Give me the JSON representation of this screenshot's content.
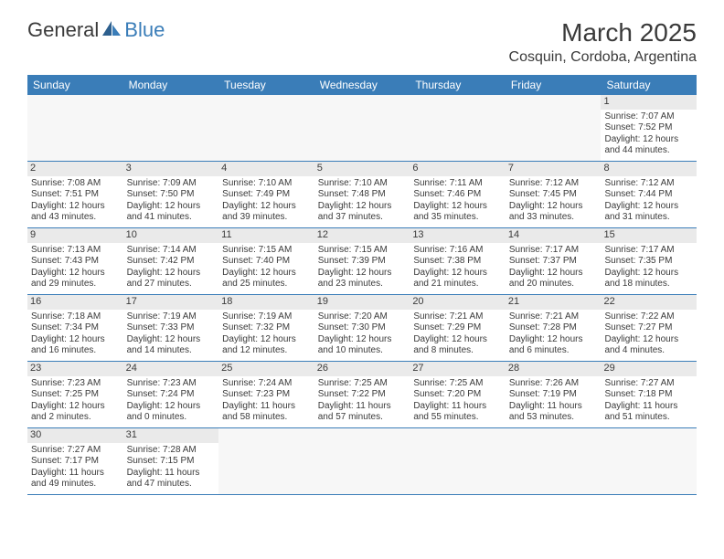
{
  "logo": {
    "text1": "General",
    "text2": "Blue"
  },
  "title": "March 2025",
  "location": "Cosquin, Cordoba, Argentina",
  "colors": {
    "header_bg": "#3a7db8",
    "header_text": "#ffffff",
    "daynum_bg": "#eaeaea",
    "empty_bg": "#f7f7f7",
    "text": "#3a3a3a",
    "border": "#3a7db8"
  },
  "days_of_week": [
    "Sunday",
    "Monday",
    "Tuesday",
    "Wednesday",
    "Thursday",
    "Friday",
    "Saturday"
  ],
  "weeks": [
    [
      {
        "empty": true
      },
      {
        "empty": true
      },
      {
        "empty": true
      },
      {
        "empty": true
      },
      {
        "empty": true
      },
      {
        "empty": true
      },
      {
        "day": 1,
        "sunrise": "Sunrise: 7:07 AM",
        "sunset": "Sunset: 7:52 PM",
        "daylight": "Daylight: 12 hours and 44 minutes."
      }
    ],
    [
      {
        "day": 2,
        "sunrise": "Sunrise: 7:08 AM",
        "sunset": "Sunset: 7:51 PM",
        "daylight": "Daylight: 12 hours and 43 minutes."
      },
      {
        "day": 3,
        "sunrise": "Sunrise: 7:09 AM",
        "sunset": "Sunset: 7:50 PM",
        "daylight": "Daylight: 12 hours and 41 minutes."
      },
      {
        "day": 4,
        "sunrise": "Sunrise: 7:10 AM",
        "sunset": "Sunset: 7:49 PM",
        "daylight": "Daylight: 12 hours and 39 minutes."
      },
      {
        "day": 5,
        "sunrise": "Sunrise: 7:10 AM",
        "sunset": "Sunset: 7:48 PM",
        "daylight": "Daylight: 12 hours and 37 minutes."
      },
      {
        "day": 6,
        "sunrise": "Sunrise: 7:11 AM",
        "sunset": "Sunset: 7:46 PM",
        "daylight": "Daylight: 12 hours and 35 minutes."
      },
      {
        "day": 7,
        "sunrise": "Sunrise: 7:12 AM",
        "sunset": "Sunset: 7:45 PM",
        "daylight": "Daylight: 12 hours and 33 minutes."
      },
      {
        "day": 8,
        "sunrise": "Sunrise: 7:12 AM",
        "sunset": "Sunset: 7:44 PM",
        "daylight": "Daylight: 12 hours and 31 minutes."
      }
    ],
    [
      {
        "day": 9,
        "sunrise": "Sunrise: 7:13 AM",
        "sunset": "Sunset: 7:43 PM",
        "daylight": "Daylight: 12 hours and 29 minutes."
      },
      {
        "day": 10,
        "sunrise": "Sunrise: 7:14 AM",
        "sunset": "Sunset: 7:42 PM",
        "daylight": "Daylight: 12 hours and 27 minutes."
      },
      {
        "day": 11,
        "sunrise": "Sunrise: 7:15 AM",
        "sunset": "Sunset: 7:40 PM",
        "daylight": "Daylight: 12 hours and 25 minutes."
      },
      {
        "day": 12,
        "sunrise": "Sunrise: 7:15 AM",
        "sunset": "Sunset: 7:39 PM",
        "daylight": "Daylight: 12 hours and 23 minutes."
      },
      {
        "day": 13,
        "sunrise": "Sunrise: 7:16 AM",
        "sunset": "Sunset: 7:38 PM",
        "daylight": "Daylight: 12 hours and 21 minutes."
      },
      {
        "day": 14,
        "sunrise": "Sunrise: 7:17 AM",
        "sunset": "Sunset: 7:37 PM",
        "daylight": "Daylight: 12 hours and 20 minutes."
      },
      {
        "day": 15,
        "sunrise": "Sunrise: 7:17 AM",
        "sunset": "Sunset: 7:35 PM",
        "daylight": "Daylight: 12 hours and 18 minutes."
      }
    ],
    [
      {
        "day": 16,
        "sunrise": "Sunrise: 7:18 AM",
        "sunset": "Sunset: 7:34 PM",
        "daylight": "Daylight: 12 hours and 16 minutes."
      },
      {
        "day": 17,
        "sunrise": "Sunrise: 7:19 AM",
        "sunset": "Sunset: 7:33 PM",
        "daylight": "Daylight: 12 hours and 14 minutes."
      },
      {
        "day": 18,
        "sunrise": "Sunrise: 7:19 AM",
        "sunset": "Sunset: 7:32 PM",
        "daylight": "Daylight: 12 hours and 12 minutes."
      },
      {
        "day": 19,
        "sunrise": "Sunrise: 7:20 AM",
        "sunset": "Sunset: 7:30 PM",
        "daylight": "Daylight: 12 hours and 10 minutes."
      },
      {
        "day": 20,
        "sunrise": "Sunrise: 7:21 AM",
        "sunset": "Sunset: 7:29 PM",
        "daylight": "Daylight: 12 hours and 8 minutes."
      },
      {
        "day": 21,
        "sunrise": "Sunrise: 7:21 AM",
        "sunset": "Sunset: 7:28 PM",
        "daylight": "Daylight: 12 hours and 6 minutes."
      },
      {
        "day": 22,
        "sunrise": "Sunrise: 7:22 AM",
        "sunset": "Sunset: 7:27 PM",
        "daylight": "Daylight: 12 hours and 4 minutes."
      }
    ],
    [
      {
        "day": 23,
        "sunrise": "Sunrise: 7:23 AM",
        "sunset": "Sunset: 7:25 PM",
        "daylight": "Daylight: 12 hours and 2 minutes."
      },
      {
        "day": 24,
        "sunrise": "Sunrise: 7:23 AM",
        "sunset": "Sunset: 7:24 PM",
        "daylight": "Daylight: 12 hours and 0 minutes."
      },
      {
        "day": 25,
        "sunrise": "Sunrise: 7:24 AM",
        "sunset": "Sunset: 7:23 PM",
        "daylight": "Daylight: 11 hours and 58 minutes."
      },
      {
        "day": 26,
        "sunrise": "Sunrise: 7:25 AM",
        "sunset": "Sunset: 7:22 PM",
        "daylight": "Daylight: 11 hours and 57 minutes."
      },
      {
        "day": 27,
        "sunrise": "Sunrise: 7:25 AM",
        "sunset": "Sunset: 7:20 PM",
        "daylight": "Daylight: 11 hours and 55 minutes."
      },
      {
        "day": 28,
        "sunrise": "Sunrise: 7:26 AM",
        "sunset": "Sunset: 7:19 PM",
        "daylight": "Daylight: 11 hours and 53 minutes."
      },
      {
        "day": 29,
        "sunrise": "Sunrise: 7:27 AM",
        "sunset": "Sunset: 7:18 PM",
        "daylight": "Daylight: 11 hours and 51 minutes."
      }
    ],
    [
      {
        "day": 30,
        "sunrise": "Sunrise: 7:27 AM",
        "sunset": "Sunset: 7:17 PM",
        "daylight": "Daylight: 11 hours and 49 minutes."
      },
      {
        "day": 31,
        "sunrise": "Sunrise: 7:28 AM",
        "sunset": "Sunset: 7:15 PM",
        "daylight": "Daylight: 11 hours and 47 minutes."
      },
      {
        "empty": true
      },
      {
        "empty": true
      },
      {
        "empty": true
      },
      {
        "empty": true
      },
      {
        "empty": true
      }
    ]
  ]
}
